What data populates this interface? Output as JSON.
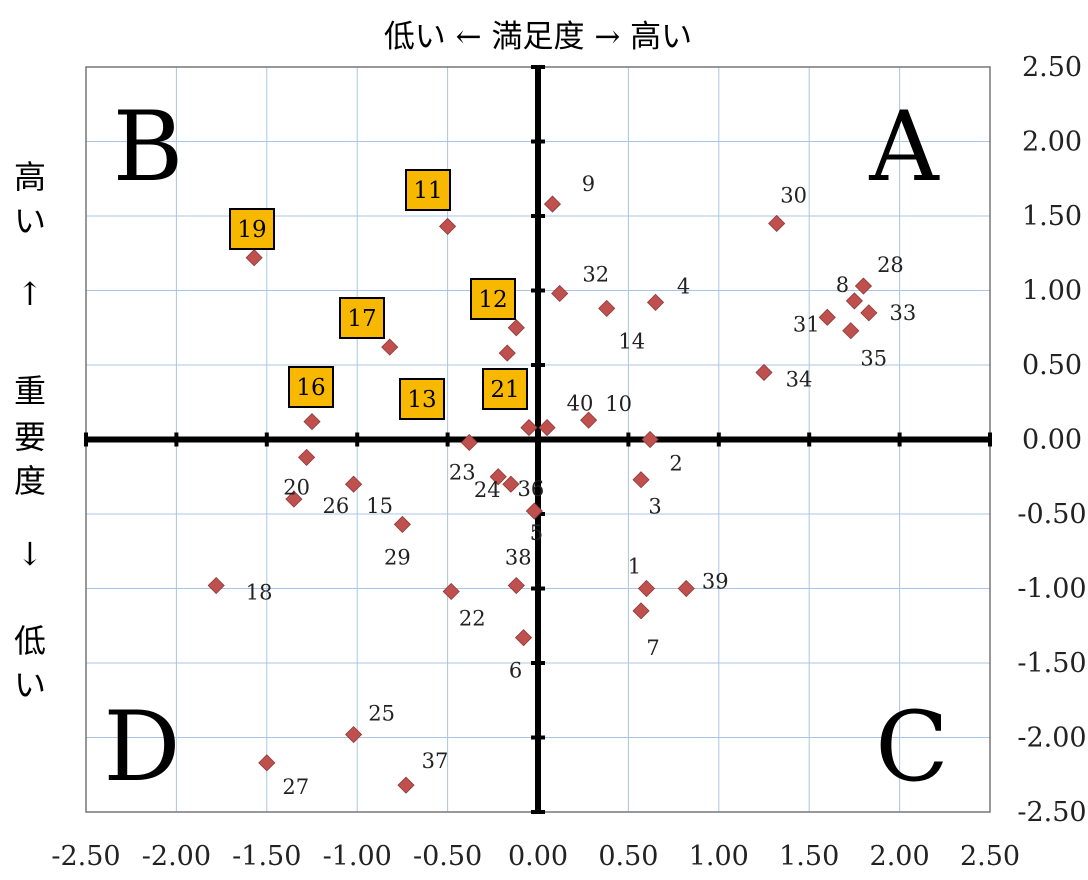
{
  "chart_data": {
    "type": "scatter",
    "title": "低い ← 満足度 → 高い",
    "ylabel_chars": [
      "高",
      "い",
      "↑",
      "重",
      "要",
      "度",
      "↓",
      "低",
      "い"
    ],
    "xlim": [
      -2.5,
      2.5
    ],
    "ylim": [
      -2.5,
      2.5
    ],
    "x_ticks": [
      "-2.50",
      "-2.00",
      "-1.50",
      "-1.00",
      "-0.50",
      "0.00",
      "0.50",
      "1.00",
      "1.50",
      "2.00",
      "2.50"
    ],
    "y_ticks": [
      "2.50",
      "2.00",
      "1.50",
      "1.00",
      "0.50",
      "0.00",
      "-0.50",
      "-1.00",
      "-1.50",
      "-2.00",
      "-2.50"
    ],
    "grid": true,
    "quadrants": [
      "A",
      "B",
      "C",
      "D"
    ],
    "marker_color": "#c0504d",
    "highlight_color": "#f9b800",
    "points": [
      {
        "label": "1",
        "x": 0.6,
        "y": -1.0
      },
      {
        "label": "2",
        "x": 0.62,
        "y": 0.0
      },
      {
        "label": "3",
        "x": 0.57,
        "y": -0.27
      },
      {
        "label": "4",
        "x": 0.65,
        "y": 0.92
      },
      {
        "label": "5",
        "x": -0.02,
        "y": -0.48
      },
      {
        "label": "6",
        "x": -0.08,
        "y": -1.33
      },
      {
        "label": "7",
        "x": 0.57,
        "y": -1.15
      },
      {
        "label": "8",
        "x": 1.75,
        "y": 0.93
      },
      {
        "label": "9",
        "x": 0.08,
        "y": 1.58
      },
      {
        "label": "10",
        "x": 0.28,
        "y": 0.13
      },
      {
        "label": "11",
        "x": -0.5,
        "y": 1.43,
        "highlight": true
      },
      {
        "label": "12",
        "x": -0.12,
        "y": 0.75,
        "highlight": true
      },
      {
        "label": "13",
        "x": -0.17,
        "y": 0.58,
        "highlight": true
      },
      {
        "label": "14",
        "x": 0.38,
        "y": 0.88
      },
      {
        "label": "15",
        "x": -1.02,
        "y": -0.3
      },
      {
        "label": "16",
        "x": -1.25,
        "y": 0.12,
        "highlight": true
      },
      {
        "label": "17",
        "x": -0.82,
        "y": 0.62,
        "highlight": true
      },
      {
        "label": "18",
        "x": -1.78,
        "y": -0.98
      },
      {
        "label": "19",
        "x": -1.57,
        "y": 1.22,
        "highlight": true
      },
      {
        "label": "20",
        "x": -1.28,
        "y": -0.12
      },
      {
        "label": "21",
        "x": -0.05,
        "y": 0.08,
        "highlight": true
      },
      {
        "label": "22",
        "x": -0.48,
        "y": -1.02
      },
      {
        "label": "23",
        "x": -0.38,
        "y": -0.02
      },
      {
        "label": "24",
        "x": -0.22,
        "y": -0.25
      },
      {
        "label": "25",
        "x": -1.02,
        "y": -1.98
      },
      {
        "label": "26",
        "x": -1.35,
        "y": -0.4
      },
      {
        "label": "27",
        "x": -1.5,
        "y": -2.17
      },
      {
        "label": "28",
        "x": 1.8,
        "y": 1.03
      },
      {
        "label": "29",
        "x": -0.75,
        "y": -0.57
      },
      {
        "label": "30",
        "x": 1.32,
        "y": 1.45
      },
      {
        "label": "31",
        "x": 1.6,
        "y": 0.82
      },
      {
        "label": "32",
        "x": 0.12,
        "y": 0.98
      },
      {
        "label": "33",
        "x": 1.83,
        "y": 0.85
      },
      {
        "label": "34",
        "x": 1.25,
        "y": 0.45
      },
      {
        "label": "35",
        "x": 1.73,
        "y": 0.73
      },
      {
        "label": "36",
        "x": -0.15,
        "y": -0.3
      },
      {
        "label": "37",
        "x": -0.73,
        "y": -2.32
      },
      {
        "label": "38",
        "x": -0.12,
        "y": -0.98
      },
      {
        "label": "39",
        "x": 0.82,
        "y": -1.0
      },
      {
        "label": "40",
        "x": 0.05,
        "y": 0.08
      }
    ]
  }
}
